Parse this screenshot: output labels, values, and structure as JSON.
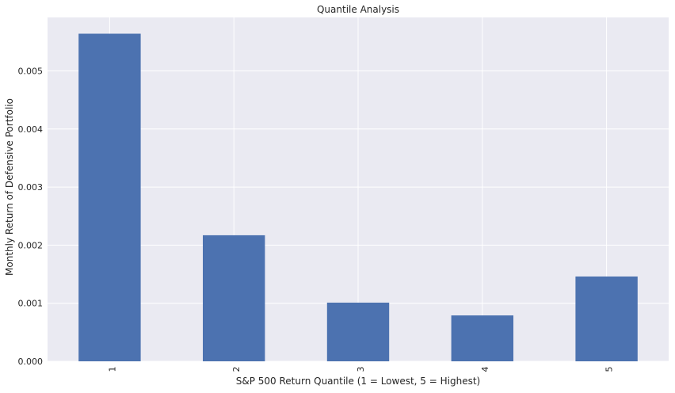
{
  "chart_data": {
    "type": "bar",
    "title": "Quantile Analysis",
    "xlabel": "S&P 500 Return Quantile (1 = Lowest, 5 = Highest)",
    "ylabel": "Monthly Return of Defensive Portfolio",
    "categories": [
      "1",
      "2",
      "3",
      "4",
      "5"
    ],
    "values": [
      0.00564,
      0.00217,
      0.00101,
      0.00079,
      0.00146
    ],
    "ylim": [
      0,
      0.00592
    ],
    "yticks": [
      0.0,
      0.001,
      0.002,
      0.003,
      0.004,
      0.005
    ],
    "ytick_labels": [
      "0.000",
      "0.001",
      "0.002",
      "0.003",
      "0.004",
      "0.005"
    ],
    "grid": true,
    "legend": "none",
    "colors": {
      "bar": "#4c72b0",
      "plot_background": "#eaeaf2",
      "grid": "#ffffff"
    }
  }
}
